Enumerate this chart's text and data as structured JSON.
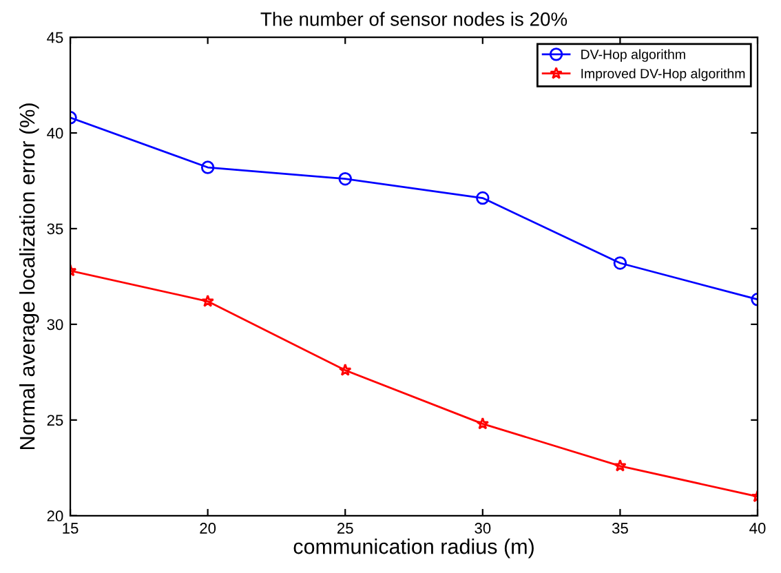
{
  "chart_data": {
    "type": "line",
    "title": "The number of sensor nodes is 20%",
    "xlabel": "communication radius (m)",
    "ylabel": "Normal average localization error (%)",
    "x": [
      15,
      20,
      25,
      30,
      35,
      40
    ],
    "series": [
      {
        "name": "DV-Hop algorithm",
        "color": "#0000ff",
        "marker": "circle",
        "values": [
          40.8,
          38.2,
          37.6,
          36.6,
          33.2,
          31.3
        ]
      },
      {
        "name": "Improved DV-Hop algorithm",
        "color": "#ff0000",
        "marker": "star",
        "values": [
          32.8,
          31.2,
          27.6,
          24.8,
          22.6,
          21.0
        ]
      }
    ],
    "xlim": [
      15,
      40
    ],
    "xticks": [
      15,
      20,
      25,
      30,
      35,
      40
    ],
    "ylim": [
      20,
      45
    ],
    "yticks": [
      20,
      25,
      30,
      35,
      40,
      45
    ],
    "grid": false,
    "legend": "top right",
    "line_style": "solid"
  }
}
